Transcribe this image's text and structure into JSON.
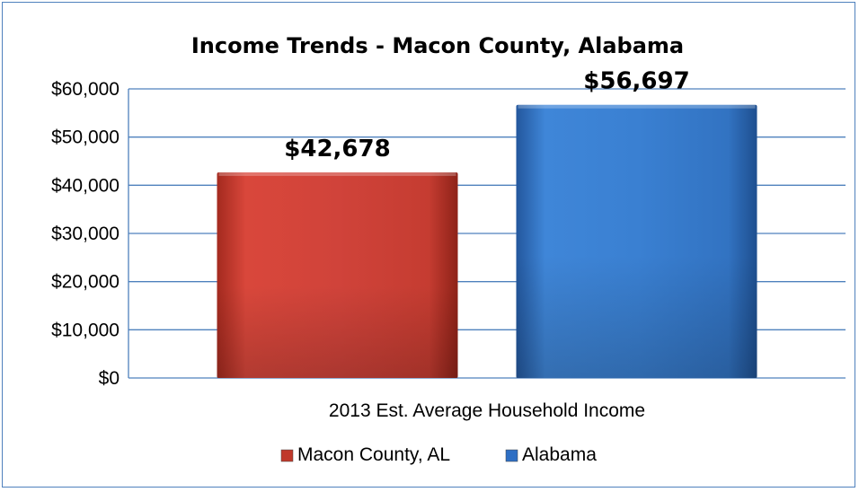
{
  "chart_data": {
    "type": "bar",
    "title": "Income Trends - Macon County, Alabama",
    "xlabel": "2013 Est. Average Household Income",
    "ylabel": "",
    "categories": [
      "2013 Est. Average Household Income"
    ],
    "series": [
      {
        "name": "Macon County, AL",
        "values": [
          42678
        ],
        "data_labels": [
          "$42,678"
        ],
        "color": "#c0392b"
      },
      {
        "name": "Alabama",
        "values": [
          56697
        ],
        "data_labels": [
          "$56,697"
        ],
        "color": "#2e6fc4"
      }
    ],
    "ylim": [
      0,
      60000
    ],
    "y_ticks": [
      0,
      10000,
      20000,
      30000,
      40000,
      50000,
      60000
    ],
    "y_tick_labels": [
      "$0",
      "$10,000",
      "$20,000",
      "$30,000",
      "$40,000",
      "$50,000",
      "$60,000"
    ],
    "grid": true,
    "grid_color": "#4f81bd",
    "legend_position": "bottom",
    "frame_color": "#4f81bd"
  }
}
